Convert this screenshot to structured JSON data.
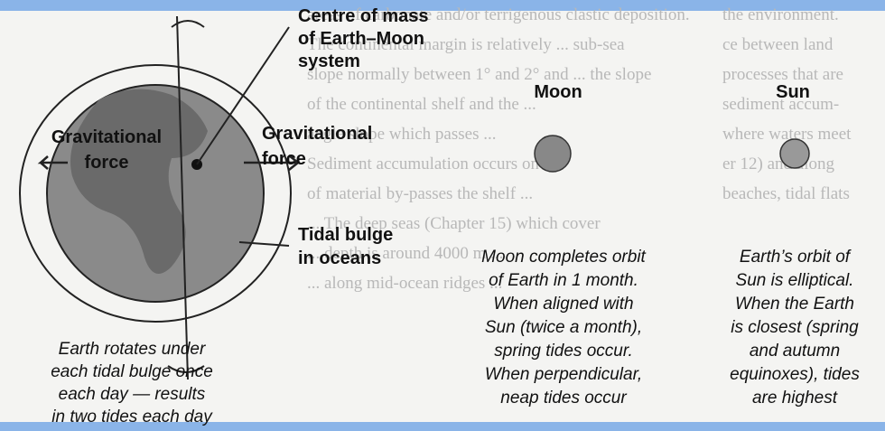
{
  "background_text": [
    "areas of carbonate and/or terrigenous clastic deposition.",
    "The continental margin is relatively ... sub-sea",
    "slope normally between 1° and 2° and ... the slope",
    "of the continental shelf and the ...",
    "angle slope which passes ...",
    "Sediment accumulation occurs on ...",
    "of material by-passes the shelf ...",
    "... The deep seas (Chapter 15) which cover",
    "... depth is around 4000 m ...",
    "... along mid-ocean ridges ..."
  ],
  "background_text_right": [
    "the environment.",
    "ce between land",
    "processes that are",
    "sediment accum-",
    "where waters meet",
    "er 12) and along",
    "beaches, tidal flats"
  ],
  "centre_of_mass": [
    "Centre of mass",
    "of Earth–Moon",
    "system"
  ],
  "gravitational_force_left": [
    "Gravitational",
    "force"
  ],
  "gravitational_force_right": [
    "Gravitational",
    "force"
  ],
  "tidal_bulge": [
    "Tidal bulge",
    "in oceans"
  ],
  "earth_caption": [
    "Earth rotates under",
    "each tidal bulge once",
    "each day — results",
    "in two tides each day"
  ],
  "moon_title": "Moon",
  "sun_title": "Sun",
  "moon_caption": [
    "Moon completes orbit",
    "of Earth in 1 month.",
    "When aligned with",
    "Sun (twice a month),",
    "spring tides occur.",
    "When perpendicular,",
    "neap tides occur"
  ],
  "sun_caption": [
    "Earth’s orbit of",
    "Sun is elliptical.",
    "When the Earth",
    "is closest (spring",
    "and autumn",
    "equinoxes), tides",
    "are highest"
  ]
}
